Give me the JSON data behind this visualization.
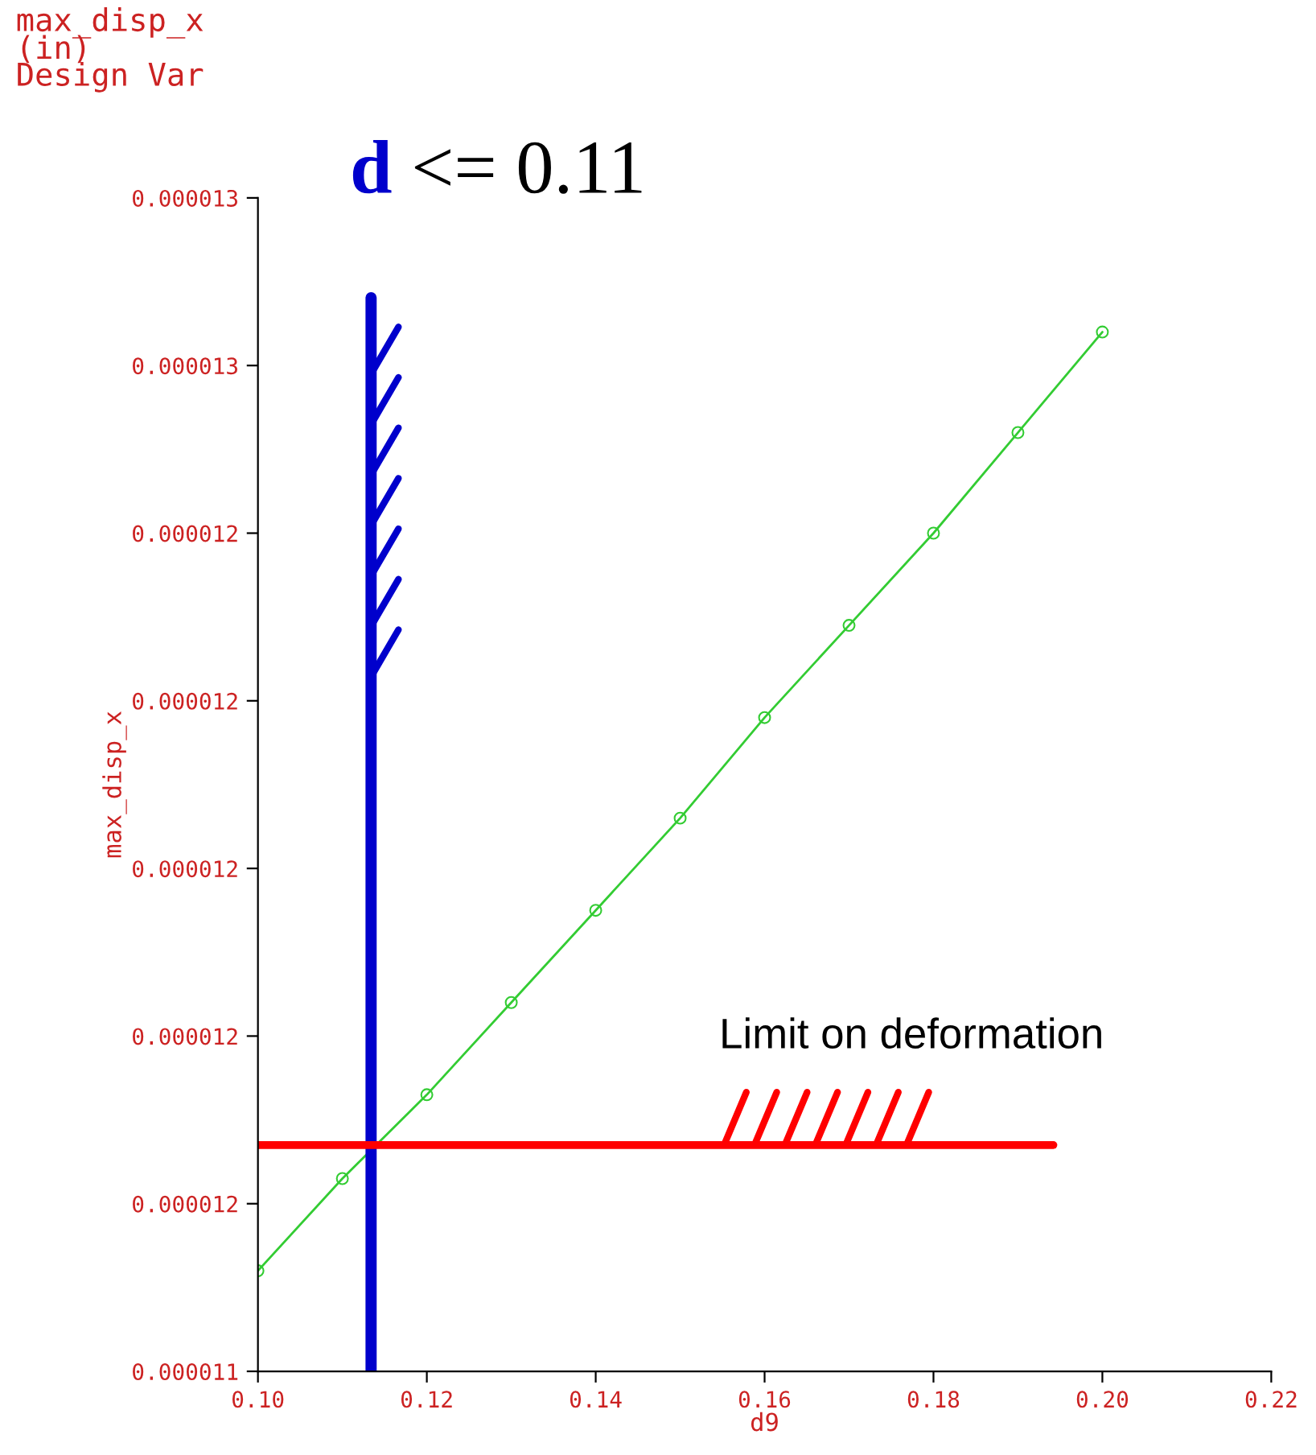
{
  "chart_data": {
    "type": "line",
    "title": "max_disp_x\n(in)\nDesign Var",
    "xlabel": "d9",
    "ylabel": "max_disp_x",
    "x": [
      0.1,
      0.11,
      0.12,
      0.13,
      0.14,
      0.15,
      0.16,
      0.17,
      0.18,
      0.19,
      0.2
    ],
    "series": [
      {
        "color": "#33cc33",
        "values": [
          1.152e-05,
          1.163e-05,
          1.173e-05,
          1.184e-05,
          1.195e-05,
          1.206e-05,
          1.218e-05,
          1.229e-05,
          1.24e-05,
          1.252e-05,
          1.264e-05
        ]
      }
    ],
    "xlim": [
      0.1,
      0.22
    ],
    "ylim": [
      1.14e-05,
      1.28e-05
    ],
    "xticks": [
      {
        "value": 0.1,
        "label": "0.10"
      },
      {
        "value": 0.12,
        "label": "0.12"
      },
      {
        "value": 0.14,
        "label": "0.14"
      },
      {
        "value": 0.16,
        "label": "0.16"
      },
      {
        "value": 0.18,
        "label": "0.18"
      },
      {
        "value": 0.2,
        "label": "0.20"
      },
      {
        "value": 0.22,
        "label": "0.22"
      }
    ],
    "yticks": [
      {
        "value": 1.14e-05,
        "label": "0.000011"
      },
      {
        "value": 1.16e-05,
        "label": "0.000012"
      },
      {
        "value": 1.18e-05,
        "label": "0.000012"
      },
      {
        "value": 1.2e-05,
        "label": "0.000012"
      },
      {
        "value": 1.22e-05,
        "label": "0.000012"
      },
      {
        "value": 1.24e-05,
        "label": "0.000012"
      },
      {
        "value": 1.26e-05,
        "label": "0.000013"
      },
      {
        "value": 1.28e-05,
        "label": "0.000013"
      }
    ],
    "ref_lines": [
      {
        "axis": "x",
        "value": 0.1134,
        "label": "d <= 0.11",
        "color": "#0000cc"
      },
      {
        "axis": "y",
        "value": 1.167e-05,
        "label": "Limit on deformation",
        "color": "#ff0000"
      }
    ],
    "marker": "circle",
    "line_style": "solid",
    "grid": false,
    "legend": false
  }
}
